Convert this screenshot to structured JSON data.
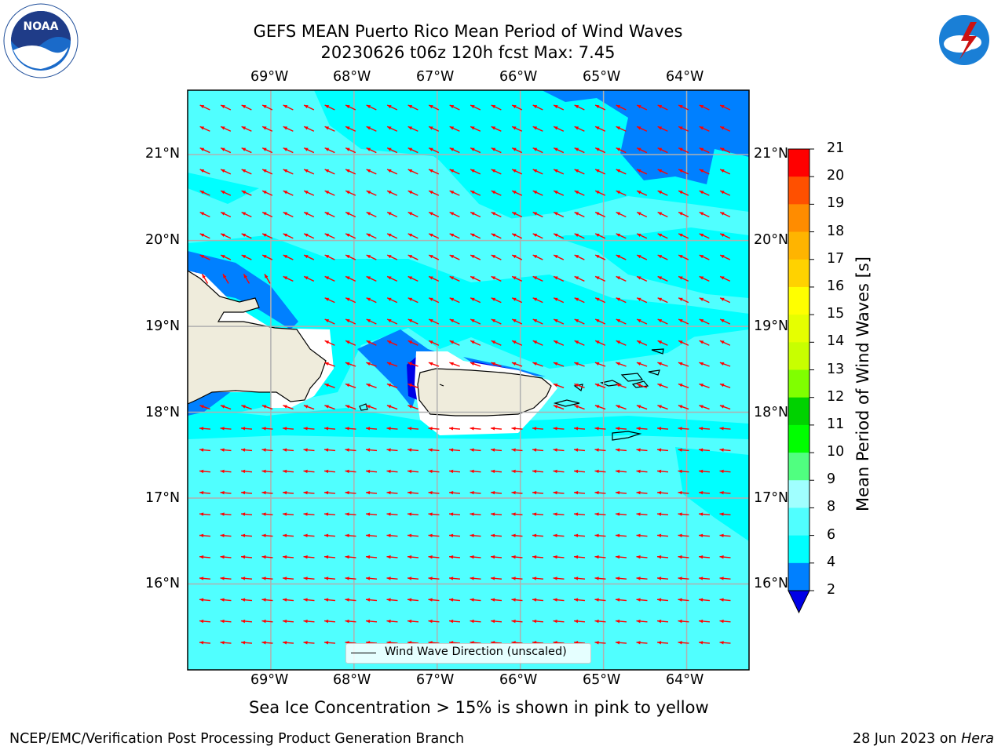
{
  "header": {
    "title_line1": "GEFS MEAN Puerto Rico Mean Period of Wind Waves",
    "title_line2": "20230626 t06z 120h fcst   Max: 7.45"
  },
  "logos": {
    "left": {
      "icon": "noaa-logo",
      "text": "NOAA"
    },
    "right": {
      "icon": "national-weather-service-logo",
      "text": "NATIONAL WEATHER SERVICE"
    }
  },
  "map": {
    "lon_labels": [
      "69°W",
      "68°W",
      "67°W",
      "66°W",
      "65°W",
      "64°W"
    ],
    "lat_labels": [
      "21°N",
      "20°N",
      "19°N",
      "18°N",
      "17°N",
      "16°N"
    ],
    "extent": {
      "lon": [
        -70.0,
        -63.25
      ],
      "lat": [
        15.0,
        21.75
      ]
    },
    "gridlines": true,
    "vector_color": "#ff0000",
    "vector_direction": "toward west-northwest"
  },
  "legend": {
    "text": "Wind Wave Direction (unscaled)"
  },
  "colorbar": {
    "label": "Mean Period of Wind Waves [s]",
    "ticks": [
      "2",
      "4",
      "6",
      "8",
      "9",
      "10",
      "11",
      "12",
      "13",
      "14",
      "15",
      "16",
      "17",
      "18",
      "19",
      "20",
      "21"
    ],
    "colors": [
      "#0000e6",
      "#0080ff",
      "#00ffff",
      "#50ffff",
      "#a0ffff",
      "#50ff80",
      "#00ff00",
      "#00d200",
      "#80ff00",
      "#c8ff00",
      "#e6ff00",
      "#ffff00",
      "#ffd200",
      "#ffb400",
      "#ff8c00",
      "#ff5000",
      "#ff0000"
    ]
  },
  "caption": "Sea Ice Concentration > 15% is shown in pink to yellow",
  "footer": {
    "left": "NCEP/EMC/Verification Post Processing Product Generation Branch",
    "right_prefix": "28 Jun 2023 on ",
    "right_italic": "Hera"
  }
}
